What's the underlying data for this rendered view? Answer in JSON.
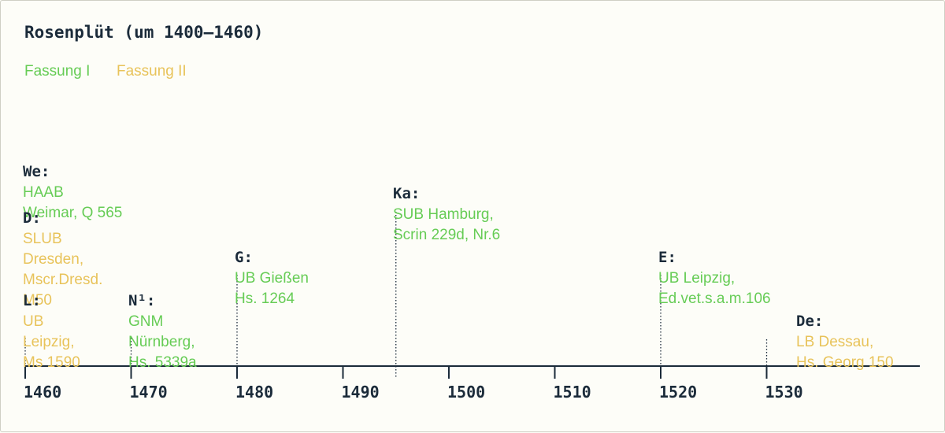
{
  "colors": {
    "fassung_1": "#66cc55",
    "fassung_2": "#e8c35a",
    "ink": "#1b2b3a"
  },
  "chart_data": {
    "type": "timeline",
    "title": "Rosenplüt (um 1400–1460)",
    "legend": [
      {
        "name": "Fassung I",
        "color": "#66cc55"
      },
      {
        "name": "Fassung II",
        "color": "#e8c35a"
      }
    ],
    "xlim": [
      1460,
      1540
    ],
    "ticks": [
      1460,
      1470,
      1480,
      1490,
      1500,
      1510,
      1520,
      1530
    ],
    "tick_labels": [
      "1460",
      "1470",
      "1480",
      "1490",
      "1500",
      "1510",
      "1520",
      "1530"
    ],
    "events": [
      {
        "year": 1460,
        "siglum": "We:",
        "text": "HAAB\nWeimar, Q 565",
        "fassung": 1
      },
      {
        "year": 1460,
        "siglum": "D:",
        "text": "SLUB\nDresden,\nMscr.Dresd.\nM50",
        "fassung": 2
      },
      {
        "year": 1460,
        "siglum": "L:",
        "text": "UB\nLeipzig,\nMs 1590",
        "fassung": 2
      },
      {
        "year": 1470,
        "siglum": "N¹:",
        "text": "GNM\nNürnberg,\nHs. 5339a",
        "fassung": 1
      },
      {
        "year": 1480,
        "siglum": "G:",
        "text": "UB Gießen\nHs. 1264",
        "fassung": 1
      },
      {
        "year": 1495,
        "siglum": "Ka:",
        "text": "SUB Hamburg,\nScrin 229d, Nr.6",
        "fassung": 1
      },
      {
        "year": 1520,
        "siglum": "E:",
        "text": "UB Leipzig,\nEd.vet.s.a.m.106",
        "fassung": 1
      },
      {
        "year": 1530,
        "siglum": "De:",
        "text": "LB Dessau,\nHs. Georg 150",
        "fassung": 2
      }
    ]
  }
}
